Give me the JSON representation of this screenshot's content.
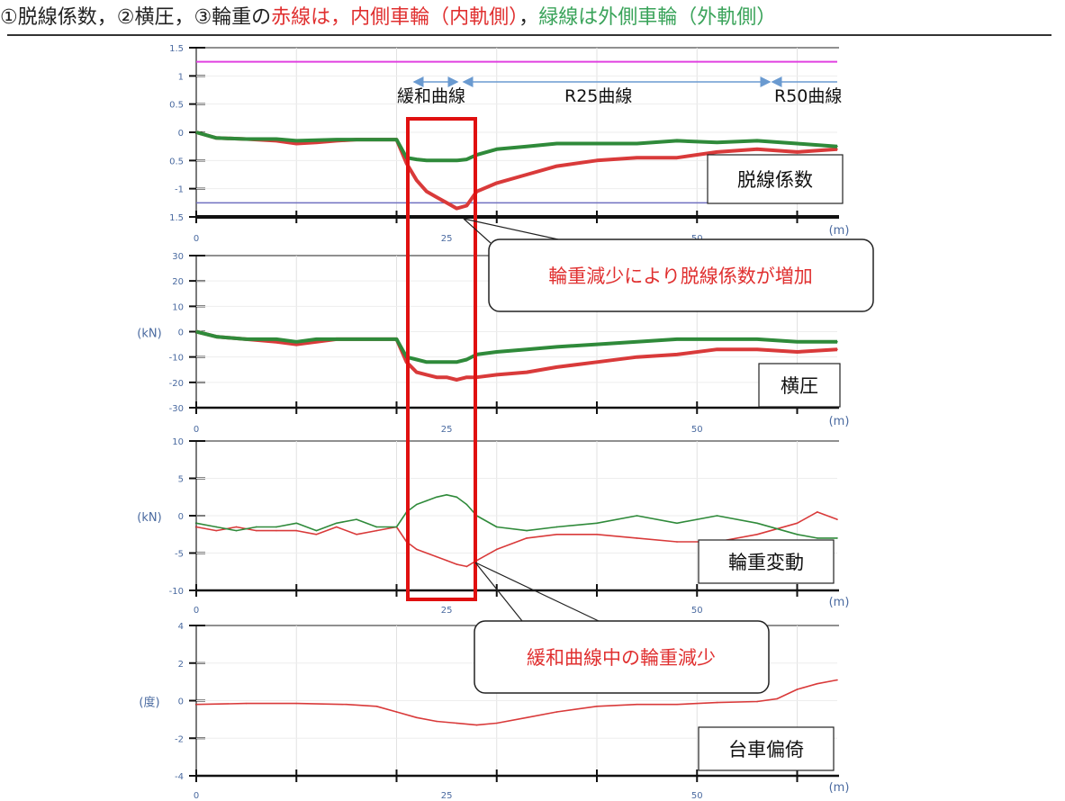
{
  "header": {
    "part1": "①脱線係数，②横圧，③輪重の",
    "part2": "赤線は，内側車輪（内軌側）",
    "part3": "，",
    "part4": "緑線は外側車輪（外軌側）"
  },
  "colors": {
    "inner_wheel": "#d93a3a",
    "outer_wheel": "#2f8a3a",
    "highlight_box": "#e01010",
    "magenta_line": "#e040e0",
    "axis_blue": "#4a6aa0",
    "section_arrow": "#6a9ad0"
  },
  "sections": {
    "transition": "緩和曲線",
    "r25": "R25曲線",
    "r50": "R50曲線"
  },
  "callouts": {
    "top": "輪重減少により脱線係数が増加",
    "bottom": "緩和曲線中の輪重減少"
  },
  "chart_data": [
    {
      "type": "line",
      "name": "脱線係数",
      "title": "脱線係数",
      "x_unit": "(m)",
      "xlim": [
        0,
        64
      ],
      "xticks": [
        "0",
        "25",
        "50"
      ],
      "ylim": [
        -1.5,
        1.5
      ],
      "yticks": [
        "1.5",
        "1",
        "0.5",
        "0",
        "0.5",
        "-1",
        "1.5"
      ],
      "reference_line": 1.25,
      "series": [
        {
          "color_key": "inner_wheel",
          "x": [
            0,
            2,
            5,
            8,
            10,
            12,
            14,
            16,
            18,
            20,
            21,
            22,
            23,
            24,
            25,
            26,
            27,
            28,
            30,
            33,
            36,
            40,
            44,
            48,
            52,
            56,
            60,
            64
          ],
          "y": [
            0,
            -0.1,
            -0.12,
            -0.15,
            -0.2,
            -0.18,
            -0.15,
            -0.13,
            -0.13,
            -0.13,
            -0.55,
            -0.85,
            -1.05,
            -1.15,
            -1.25,
            -1.35,
            -1.3,
            -1.05,
            -0.9,
            -0.75,
            -0.6,
            -0.5,
            -0.45,
            -0.45,
            -0.35,
            -0.3,
            -0.35,
            -0.3
          ]
        },
        {
          "color_key": "outer_wheel",
          "x": [
            0,
            2,
            5,
            8,
            10,
            12,
            14,
            16,
            18,
            20,
            21,
            22,
            23,
            24,
            25,
            26,
            27,
            28,
            30,
            33,
            36,
            40,
            44,
            48,
            52,
            56,
            60,
            64
          ],
          "y": [
            0,
            -0.1,
            -0.12,
            -0.12,
            -0.15,
            -0.14,
            -0.13,
            -0.13,
            -0.13,
            -0.13,
            -0.45,
            -0.48,
            -0.5,
            -0.5,
            -0.5,
            -0.5,
            -0.48,
            -0.4,
            -0.3,
            -0.25,
            -0.2,
            -0.2,
            -0.2,
            -0.15,
            -0.18,
            -0.15,
            -0.2,
            -0.25
          ]
        }
      ]
    },
    {
      "type": "line",
      "name": "横圧",
      "title": "横圧",
      "ylabel": "(kN)",
      "x_unit": "(m)",
      "xlim": [
        0,
        64
      ],
      "xticks": [
        "0",
        "25",
        "50"
      ],
      "ylim": [
        -30,
        30
      ],
      "yticks": [
        "30",
        "20",
        "10",
        "0",
        "-10",
        "-20",
        "-30"
      ],
      "series": [
        {
          "color_key": "inner_wheel",
          "x": [
            0,
            2,
            5,
            8,
            10,
            12,
            14,
            16,
            18,
            20,
            21,
            22,
            23,
            24,
            25,
            26,
            27,
            28,
            30,
            33,
            36,
            40,
            44,
            48,
            52,
            56,
            60,
            64
          ],
          "y": [
            0,
            -2,
            -3,
            -4,
            -5,
            -4,
            -3,
            -3,
            -3,
            -3,
            -12,
            -16,
            -17,
            -18,
            -18,
            -19,
            -18,
            -18,
            -17,
            -16,
            -14,
            -12,
            -10,
            -9,
            -7,
            -7,
            -8,
            -7
          ]
        },
        {
          "color_key": "outer_wheel",
          "x": [
            0,
            2,
            5,
            8,
            10,
            12,
            14,
            16,
            18,
            20,
            21,
            22,
            23,
            24,
            25,
            26,
            27,
            28,
            30,
            33,
            36,
            40,
            44,
            48,
            52,
            56,
            60,
            64
          ],
          "y": [
            0,
            -2,
            -3,
            -3,
            -4,
            -3,
            -3,
            -3,
            -3,
            -3,
            -10,
            -11,
            -12,
            -12,
            -12,
            -12,
            -11,
            -9,
            -8,
            -7,
            -6,
            -5,
            -4,
            -3,
            -3,
            -3,
            -4,
            -4
          ]
        }
      ]
    },
    {
      "type": "line",
      "name": "輪重変動",
      "title": "輪重変動",
      "ylabel": "(kN)",
      "x_unit": "(m)",
      "xlim": [
        0,
        64
      ],
      "xticks": [
        "0",
        "25",
        "50"
      ],
      "ylim": [
        -10,
        10
      ],
      "yticks": [
        "10",
        "5",
        "0",
        "-5",
        "-10"
      ],
      "series": [
        {
          "color_key": "inner_wheel",
          "x": [
            0,
            2,
            4,
            6,
            8,
            10,
            12,
            14,
            16,
            18,
            20,
            21,
            22,
            23,
            24,
            25,
            26,
            27,
            28,
            30,
            33,
            36,
            40,
            44,
            48,
            52,
            56,
            60,
            62,
            64
          ],
          "y": [
            -1.5,
            -2,
            -1.5,
            -2,
            -2,
            -2,
            -2.5,
            -1.5,
            -2.5,
            -2,
            -1.5,
            -3.5,
            -4.5,
            -5,
            -5.5,
            -6,
            -6.5,
            -6.8,
            -6,
            -4.5,
            -3,
            -2.5,
            -2.5,
            -3,
            -3.5,
            -3.5,
            -2.5,
            -1,
            0.5,
            -0.5
          ]
        },
        {
          "color_key": "outer_wheel",
          "x": [
            0,
            2,
            4,
            6,
            8,
            10,
            12,
            14,
            16,
            18,
            20,
            21,
            22,
            23,
            24,
            25,
            26,
            27,
            28,
            30,
            33,
            36,
            40,
            44,
            48,
            52,
            56,
            60,
            62,
            64
          ],
          "y": [
            -1,
            -1.5,
            -2,
            -1.5,
            -1.5,
            -1,
            -2,
            -1,
            -0.5,
            -1.5,
            -1.5,
            0.5,
            1.5,
            2,
            2.5,
            2.8,
            2.5,
            1.5,
            0,
            -1.5,
            -2,
            -1.5,
            -1,
            0,
            -1,
            0,
            -1,
            -2.5,
            -3,
            -3
          ]
        }
      ]
    },
    {
      "type": "line",
      "name": "台車偏倚",
      "title": "台車偏倚",
      "ylabel": "(度)",
      "x_unit": "(m)",
      "xlim": [
        0,
        64
      ],
      "xticks": [
        "0",
        "25",
        "50"
      ],
      "ylim": [
        -4,
        4
      ],
      "yticks": [
        "4",
        "2",
        "0",
        "-2",
        "-4"
      ],
      "series": [
        {
          "color_key": "inner_wheel",
          "x": [
            0,
            5,
            10,
            15,
            18,
            20,
            22,
            24,
            26,
            28,
            30,
            33,
            36,
            40,
            44,
            48,
            52,
            56,
            58,
            60,
            62,
            64
          ],
          "y": [
            -0.2,
            -0.15,
            -0.15,
            -0.2,
            -0.3,
            -0.6,
            -0.9,
            -1.1,
            -1.2,
            -1.3,
            -1.2,
            -0.9,
            -0.6,
            -0.3,
            -0.2,
            -0.2,
            -0.1,
            -0.05,
            0.1,
            0.6,
            0.9,
            1.1
          ]
        }
      ]
    }
  ]
}
